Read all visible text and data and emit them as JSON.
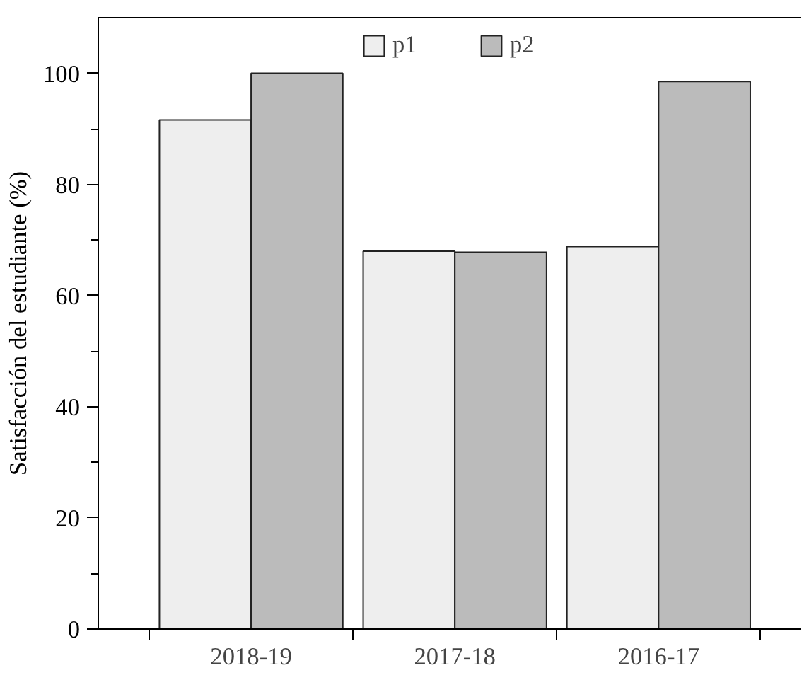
{
  "chart_data": {
    "type": "bar",
    "ylabel": "Satisfacción del estudiante (%)",
    "categories": [
      "2018-19",
      "2017-18",
      "2016-17"
    ],
    "series": [
      {
        "name": "p1",
        "color": "#eeeeee",
        "values": [
          91.6,
          68.0,
          68.8
        ]
      },
      {
        "name": "p2",
        "color": "#bbbbbb",
        "values": [
          100,
          67.8,
          98.5
        ]
      }
    ],
    "ylim": [
      0,
      110
    ],
    "yticks": [
      0,
      {
        "value": 10,
        "label": null
      },
      20,
      {
        "value": 30,
        "label": null
      },
      40,
      {
        "value": 50,
        "label": null
      },
      60,
      {
        "value": 70,
        "label": null
      },
      80,
      {
        "value": 90,
        "label": null
      },
      100
    ],
    "grid": false,
    "legend": "top"
  }
}
